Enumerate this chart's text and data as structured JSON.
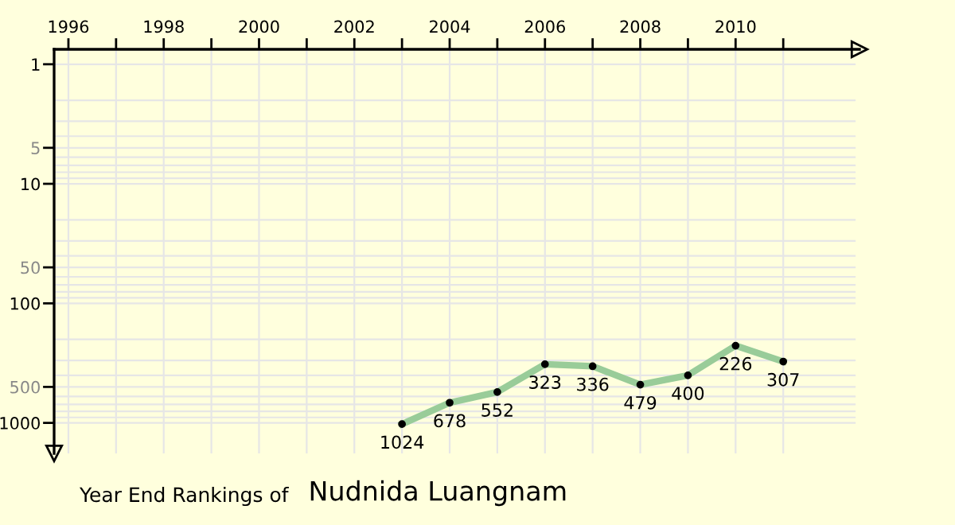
{
  "chart_data": {
    "type": "line",
    "title": "Year End Rankings of",
    "subtitle": "Nudnida Luangnam",
    "x": [
      2003,
      2004,
      2005,
      2006,
      2007,
      2008,
      2009,
      2010,
      2011
    ],
    "series": [
      {
        "color": "#99cc99",
        "values": [
          1024,
          678,
          552,
          323,
          336,
          479,
          400,
          226,
          307
        ]
      }
    ],
    "xlim": [
      1995.7,
      2012.6
    ],
    "xticks": [
      1996,
      {
        "value": 1997,
        "label": null
      },
      1998,
      {
        "value": 1999,
        "label": null
      },
      2000,
      {
        "value": 2001,
        "label": null
      },
      2002,
      {
        "value": 2003,
        "label": null
      },
      2004,
      {
        "value": 2005,
        "label": null
      },
      2006,
      {
        "value": 2007,
        "label": null
      },
      2008,
      {
        "value": 2009,
        "label": null
      },
      2010,
      {
        "value": 2011,
        "label": null
      }
    ],
    "ylim": [
      1800,
      0.75
    ],
    "yticks": [
      1,
      5,
      10,
      50,
      100,
      500,
      1000
    ],
    "log": "y",
    "grid": true,
    "marker": "circle",
    "line_style": "solid",
    "data_labels": true,
    "legend": false
  }
}
